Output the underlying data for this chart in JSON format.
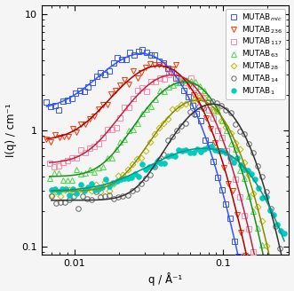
{
  "xlabel": "q / Å⁻¹",
  "ylabel": "I(q) / cm⁻¹",
  "xlim": [
    0.006,
    0.28
  ],
  "ylim": [
    0.085,
    12
  ],
  "series": [
    {
      "label": "MUTAB$_{mic}$",
      "color": "#3355ff",
      "marker": "s",
      "marker_facecolor": "none",
      "fit_color": "#3355ff",
      "peak_q": 0.034,
      "peak_I": 3.6,
      "plateau_I": 1.5,
      "sigma_l": 0.62,
      "sigma_r": 0.48,
      "steep": 6.0,
      "q_min": 0.0065,
      "q_max": 0.26,
      "n_pts": 58,
      "seed": 11
    },
    {
      "label": "MUTAB$_{236}$",
      "color": "#ff3300",
      "marker": "v",
      "marker_facecolor": "none",
      "fit_color": "#aa0000",
      "peak_q": 0.042,
      "peak_I": 3.1,
      "plateau_I": 0.82,
      "sigma_l": 0.6,
      "sigma_r": 0.46,
      "steep": 6.0,
      "q_min": 0.0065,
      "q_max": 0.26,
      "n_pts": 56,
      "seed": 22
    },
    {
      "label": "MUTAB$_{117}$",
      "color": "#ff88aa",
      "marker": "s",
      "marker_facecolor": "none",
      "fit_color": "#bb2244",
      "peak_q": 0.05,
      "peak_I": 2.7,
      "plateau_I": 0.52,
      "sigma_l": 0.58,
      "sigma_r": 0.45,
      "steep": 6.0,
      "q_min": 0.0068,
      "q_max": 0.26,
      "n_pts": 54,
      "seed": 33
    },
    {
      "label": "MUTAB$_{63}$",
      "color": "#44dd44",
      "marker": "^",
      "marker_facecolor": "none",
      "fit_color": "#228822",
      "peak_q": 0.06,
      "peak_I": 2.4,
      "plateau_I": 0.4,
      "sigma_l": 0.55,
      "sigma_r": 0.44,
      "steep": 6.0,
      "q_min": 0.0068,
      "q_max": 0.26,
      "n_pts": 54,
      "seed": 44
    },
    {
      "label": "MUTAB$_{28}$",
      "color": "#bbbb00",
      "marker": "D",
      "marker_facecolor": "none",
      "fit_color": "#888800",
      "peak_q": 0.072,
      "peak_I": 1.65,
      "plateau_I": 0.3,
      "sigma_l": 0.52,
      "sigma_r": 0.43,
      "steep": 6.0,
      "q_min": 0.007,
      "q_max": 0.26,
      "n_pts": 53,
      "seed": 55
    },
    {
      "label": "MUTAB$_{14}$",
      "color": "#666666",
      "marker": "o",
      "marker_facecolor": "none",
      "fit_color": "#333333",
      "peak_q": 0.09,
      "peak_I": 1.55,
      "plateau_I": 0.25,
      "sigma_l": 0.5,
      "sigma_r": 0.42,
      "steep": 5.0,
      "q_min": 0.007,
      "q_max": 0.26,
      "n_pts": 53,
      "seed": 66
    },
    {
      "label": "MUTAB$_{1}$",
      "color": "#00ccbb",
      "marker": "o",
      "marker_facecolor": "#00ccbb",
      "fit_color": "#009988",
      "peak_q": 0.095,
      "peak_I": 0.52,
      "plateau_I": 0.3,
      "sigma_l": 0.8,
      "sigma_r": 0.55,
      "steep": 3.0,
      "q_min": 0.007,
      "q_max": 0.26,
      "n_pts": 65,
      "seed": 77
    }
  ],
  "background_color": "#f5f5f5",
  "figsize": [
    3.31,
    3.28
  ],
  "dpi": 100
}
